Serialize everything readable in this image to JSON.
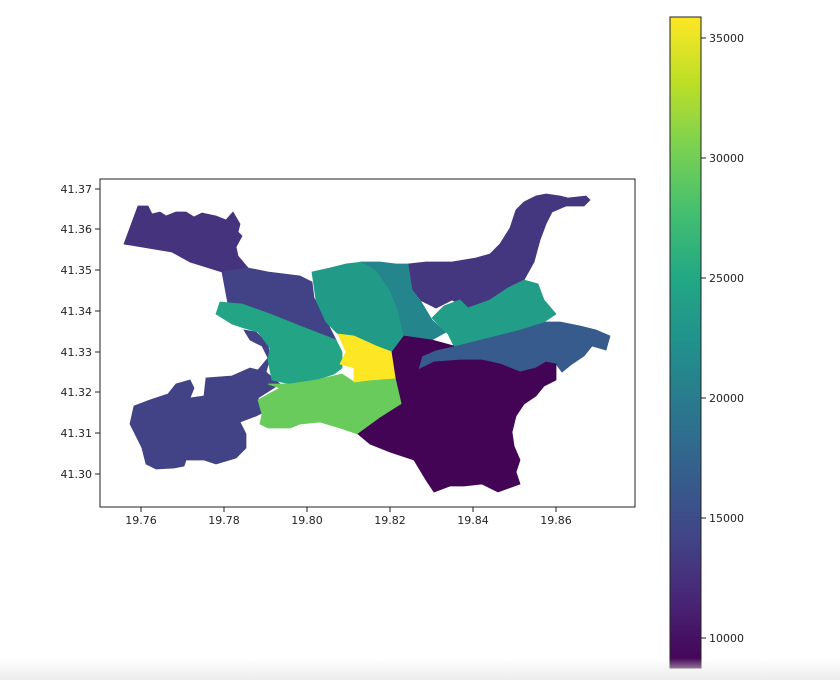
{
  "chart_data": {
    "type": "choropleth",
    "title": "",
    "xlabel": "",
    "ylabel": "",
    "xlim": [
      19.747,
      19.878
    ],
    "ylim": [
      41.293,
      41.371
    ],
    "x_ticks": [
      "19.76",
      "19.78",
      "19.80",
      "19.82",
      "19.84",
      "19.86"
    ],
    "y_ticks": [
      "41.30",
      "41.31",
      "41.32",
      "41.33",
      "41.34",
      "41.35",
      "41.36",
      "41.37"
    ],
    "colormap": "viridis",
    "colorbar": {
      "range": [
        8800,
        35800
      ],
      "ticks": [
        "10000",
        "15000",
        "20000",
        "25000",
        "30000",
        "35000"
      ]
    },
    "regions": [
      {
        "id": "northwest",
        "value": 12800
      },
      {
        "id": "west",
        "value": 14000
      },
      {
        "id": "northeast",
        "value": 13000
      },
      {
        "id": "east",
        "value": 16500
      },
      {
        "id": "center-west",
        "value": 24500
      },
      {
        "id": "center-north",
        "value": 23500
      },
      {
        "id": "center-north-east",
        "value": 21000
      },
      {
        "id": "center-east",
        "value": 23800
      },
      {
        "id": "center-south",
        "value": 29500
      },
      {
        "id": "center",
        "value": 35800
      },
      {
        "id": "southeast",
        "value": 9000
      }
    ]
  }
}
